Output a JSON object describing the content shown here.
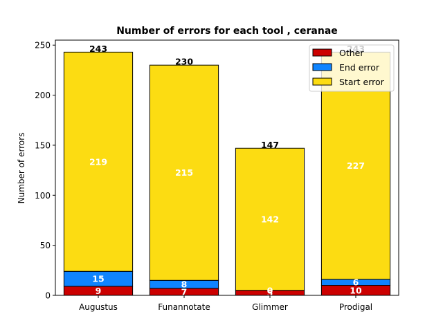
{
  "chart_data": {
    "type": "bar",
    "stacked": true,
    "title": "Number of errors for each tool , ceranae",
    "xlabel": "",
    "ylabel": "Number of errors",
    "categories": [
      "Augustus",
      "Funannotate",
      "Glimmer",
      "Prodigal"
    ],
    "series": [
      {
        "name": "Other",
        "color": "#cc0000",
        "values": [
          9,
          7,
          5,
          10
        ]
      },
      {
        "name": "End error",
        "color": "#0f84ff",
        "values": [
          15,
          8,
          0,
          6
        ]
      },
      {
        "name": "Start error",
        "color": "#fcdc12",
        "values": [
          219,
          215,
          142,
          227
        ]
      }
    ],
    "segment_labels": [
      [
        "9",
        "7",
        "5",
        "10"
      ],
      [
        "15",
        "8",
        "0",
        "6"
      ],
      [
        "219",
        "215",
        "142",
        "227"
      ]
    ],
    "totals": [
      243,
      230,
      147,
      243
    ],
    "ylim": [
      0,
      255
    ],
    "yticks": [
      0,
      50,
      100,
      150,
      200,
      250
    ],
    "grid": false,
    "legend_position": "top-right"
  }
}
